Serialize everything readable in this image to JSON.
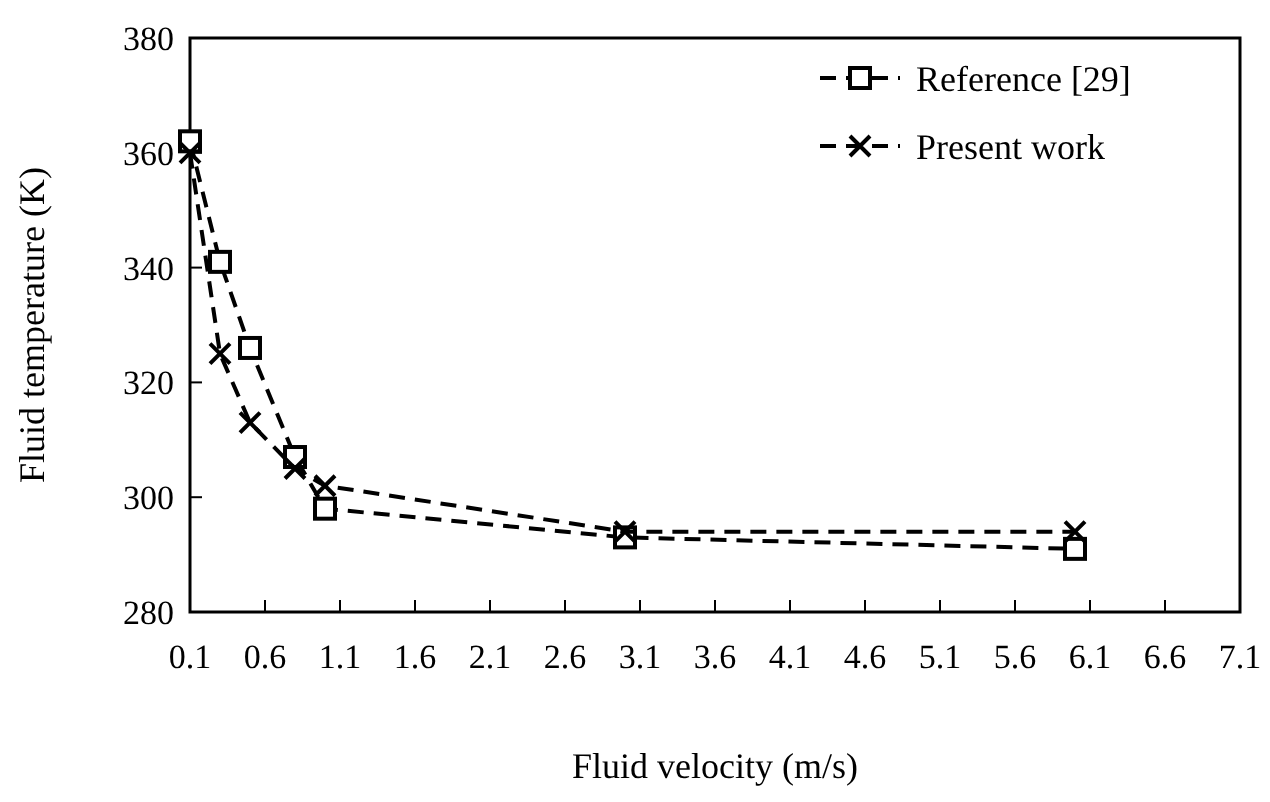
{
  "chart_data": {
    "type": "line",
    "xlabel": "Fluid velocity (m/s)",
    "ylabel": "Fluid temperature (K)",
    "xlim": [
      0.1,
      7.1
    ],
    "xticks": [
      0.1,
      0.6,
      1.1,
      1.6,
      2.1,
      2.6,
      3.1,
      3.6,
      4.1,
      4.6,
      5.1,
      5.6,
      6.1,
      6.6,
      7.1
    ],
    "ylim": [
      280,
      380
    ],
    "yticks": [
      280,
      300,
      320,
      340,
      360,
      380
    ],
    "grid": false,
    "legend": "top right",
    "line_style": "dashed",
    "series": [
      {
        "name": "Reference [29]",
        "color": "#000000",
        "marker": "square",
        "x": [
          0.1,
          0.3,
          0.5,
          0.8,
          1.0,
          3.0,
          6.0
        ],
        "values": [
          362,
          341,
          326,
          307,
          298,
          293,
          291
        ]
      },
      {
        "name": "Present work",
        "color": "#000000",
        "marker": "cross",
        "x": [
          0.1,
          0.3,
          0.5,
          0.8,
          1.0,
          3.0,
          6.0
        ],
        "values": [
          360,
          325,
          313,
          305,
          302,
          294,
          294
        ]
      }
    ]
  }
}
